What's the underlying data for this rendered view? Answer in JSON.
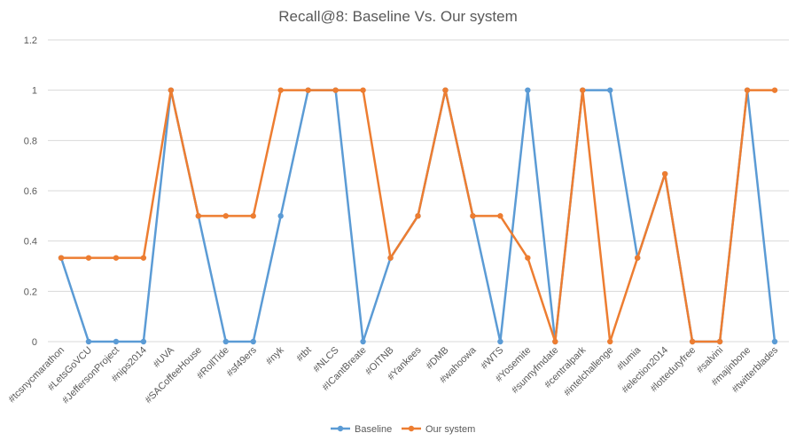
{
  "chart_data": {
    "type": "line",
    "title": "Recall@8: Baseline Vs. Our system",
    "xlabel": "",
    "ylabel": "",
    "ylim": [
      0,
      1.2
    ],
    "yticks": [
      "0",
      "0.2",
      "0.4",
      "0.6",
      "0.8",
      "1",
      "1.2"
    ],
    "grid": true,
    "legend_position": "bottom",
    "categories": [
      "#tcsnycmarathon",
      "#LetsGoVCU",
      "#JeffersonProject",
      "#nips2014",
      "#UVA",
      "#SACoffeeHouse",
      "#RollTide",
      "#sf49ers",
      "#nyk",
      "#tbt",
      "#NLCS",
      "#ICantBreate",
      "#OITNB",
      "#Yankees",
      "#DMB",
      "#wahoowa",
      "#WTS",
      "#Yosemite",
      "#sunnyfmdate",
      "#centralpark",
      "#intelchallenge",
      "#lumia",
      "#election2014",
      "#lottedutyfree",
      "#salvini",
      "#majinbone",
      "#twitterblades"
    ],
    "series": [
      {
        "name": "Baseline",
        "color": "#5b9bd5",
        "values": [
          0.333,
          0,
          0,
          0,
          1,
          0.5,
          0,
          0,
          0.5,
          1,
          1,
          0,
          0.333,
          0.5,
          1,
          0.5,
          0,
          1,
          0,
          1,
          1,
          0.333,
          0.667,
          0,
          0,
          1,
          0
        ]
      },
      {
        "name": "Our system",
        "color": "#ed7d31",
        "values": [
          0.333,
          0.333,
          0.333,
          0.333,
          1,
          0.5,
          0.5,
          0.5,
          1,
          1,
          1,
          1,
          0.333,
          0.5,
          1,
          0.5,
          0.5,
          0.333,
          0,
          1,
          0,
          0.333,
          0.667,
          0,
          0,
          1,
          1
        ]
      }
    ]
  }
}
